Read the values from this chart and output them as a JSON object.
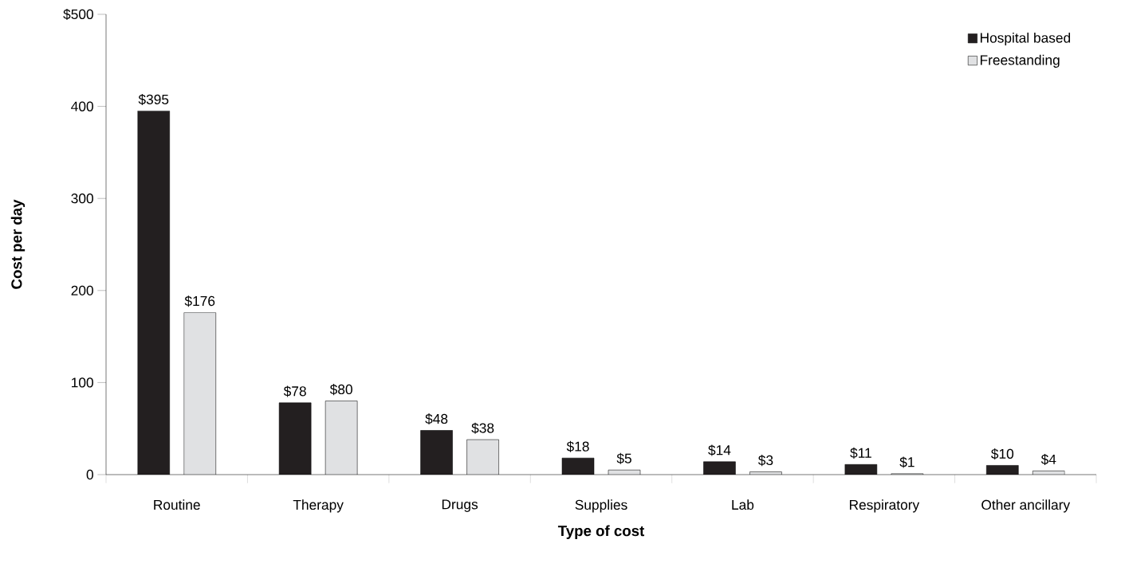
{
  "chart_data": {
    "type": "bar",
    "xlabel": "Type of cost",
    "ylabel": "Cost per day",
    "categories": [
      "Routine",
      "Therapy",
      "Drugs",
      "Supplies",
      "Lab",
      "Respiratory",
      "Other ancillary"
    ],
    "series": [
      {
        "name": "Hospital based",
        "color": "#231f20",
        "values": [
          395,
          78,
          48,
          18,
          14,
          11,
          10
        ],
        "value_labels": [
          "$395",
          "$78",
          "$48",
          "$18",
          "$14",
          "$11",
          "$10"
        ]
      },
      {
        "name": "Freestanding",
        "color": "#e0e1e3",
        "values": [
          176,
          80,
          38,
          5,
          3,
          1,
          4
        ],
        "value_labels": [
          "$176",
          "$80",
          "$38",
          "$5",
          "$3",
          "$1",
          "$4"
        ]
      }
    ],
    "ylim": [
      0,
      500
    ],
    "yticks": [
      0,
      100,
      200,
      300,
      400,
      {
        "value": 500,
        "label": "$500"
      }
    ],
    "grid": false,
    "legend": "top right"
  }
}
